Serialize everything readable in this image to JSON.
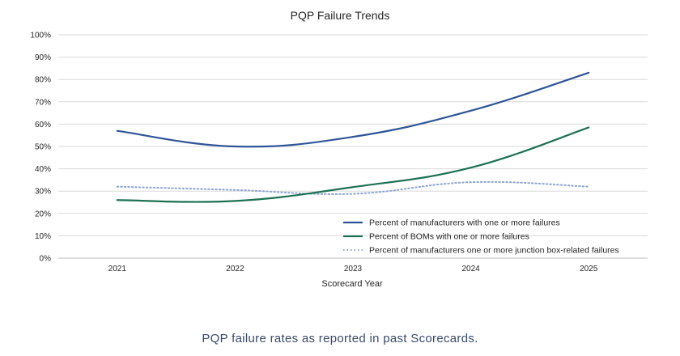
{
  "chart_data": {
    "type": "line",
    "title": "PQP Failure Trends",
    "xlabel": "Scorecard Year",
    "ylabel": "",
    "categories": [
      "2021",
      "2022",
      "2023",
      "2024",
      "2025"
    ],
    "ylim": [
      0,
      100
    ],
    "yticks": [
      "0%",
      "10%",
      "20%",
      "30%",
      "40%",
      "50%",
      "60%",
      "70%",
      "80%",
      "90%",
      "100%"
    ],
    "grid": true,
    "legend_position": "bottom-right",
    "series": [
      {
        "name": "Percent of manufacturers with one or more failures",
        "values": [
          57,
          50,
          54.3,
          66,
          83
        ],
        "color": "#2f5597",
        "style": "solid"
      },
      {
        "name": "Percent of BOMs with one or more failures",
        "values": [
          26,
          25.6,
          31.8,
          40.5,
          58.5
        ],
        "color": "#1d7152",
        "style": "solid"
      },
      {
        "name": "Percent of manufacturers one or more junction box-related failures",
        "values": [
          32,
          30.5,
          28.8,
          34,
          32
        ],
        "color": "#8fa5cf",
        "style": "dotted"
      }
    ]
  },
  "caption": "PQP failure rates as reported in past Scorecards."
}
